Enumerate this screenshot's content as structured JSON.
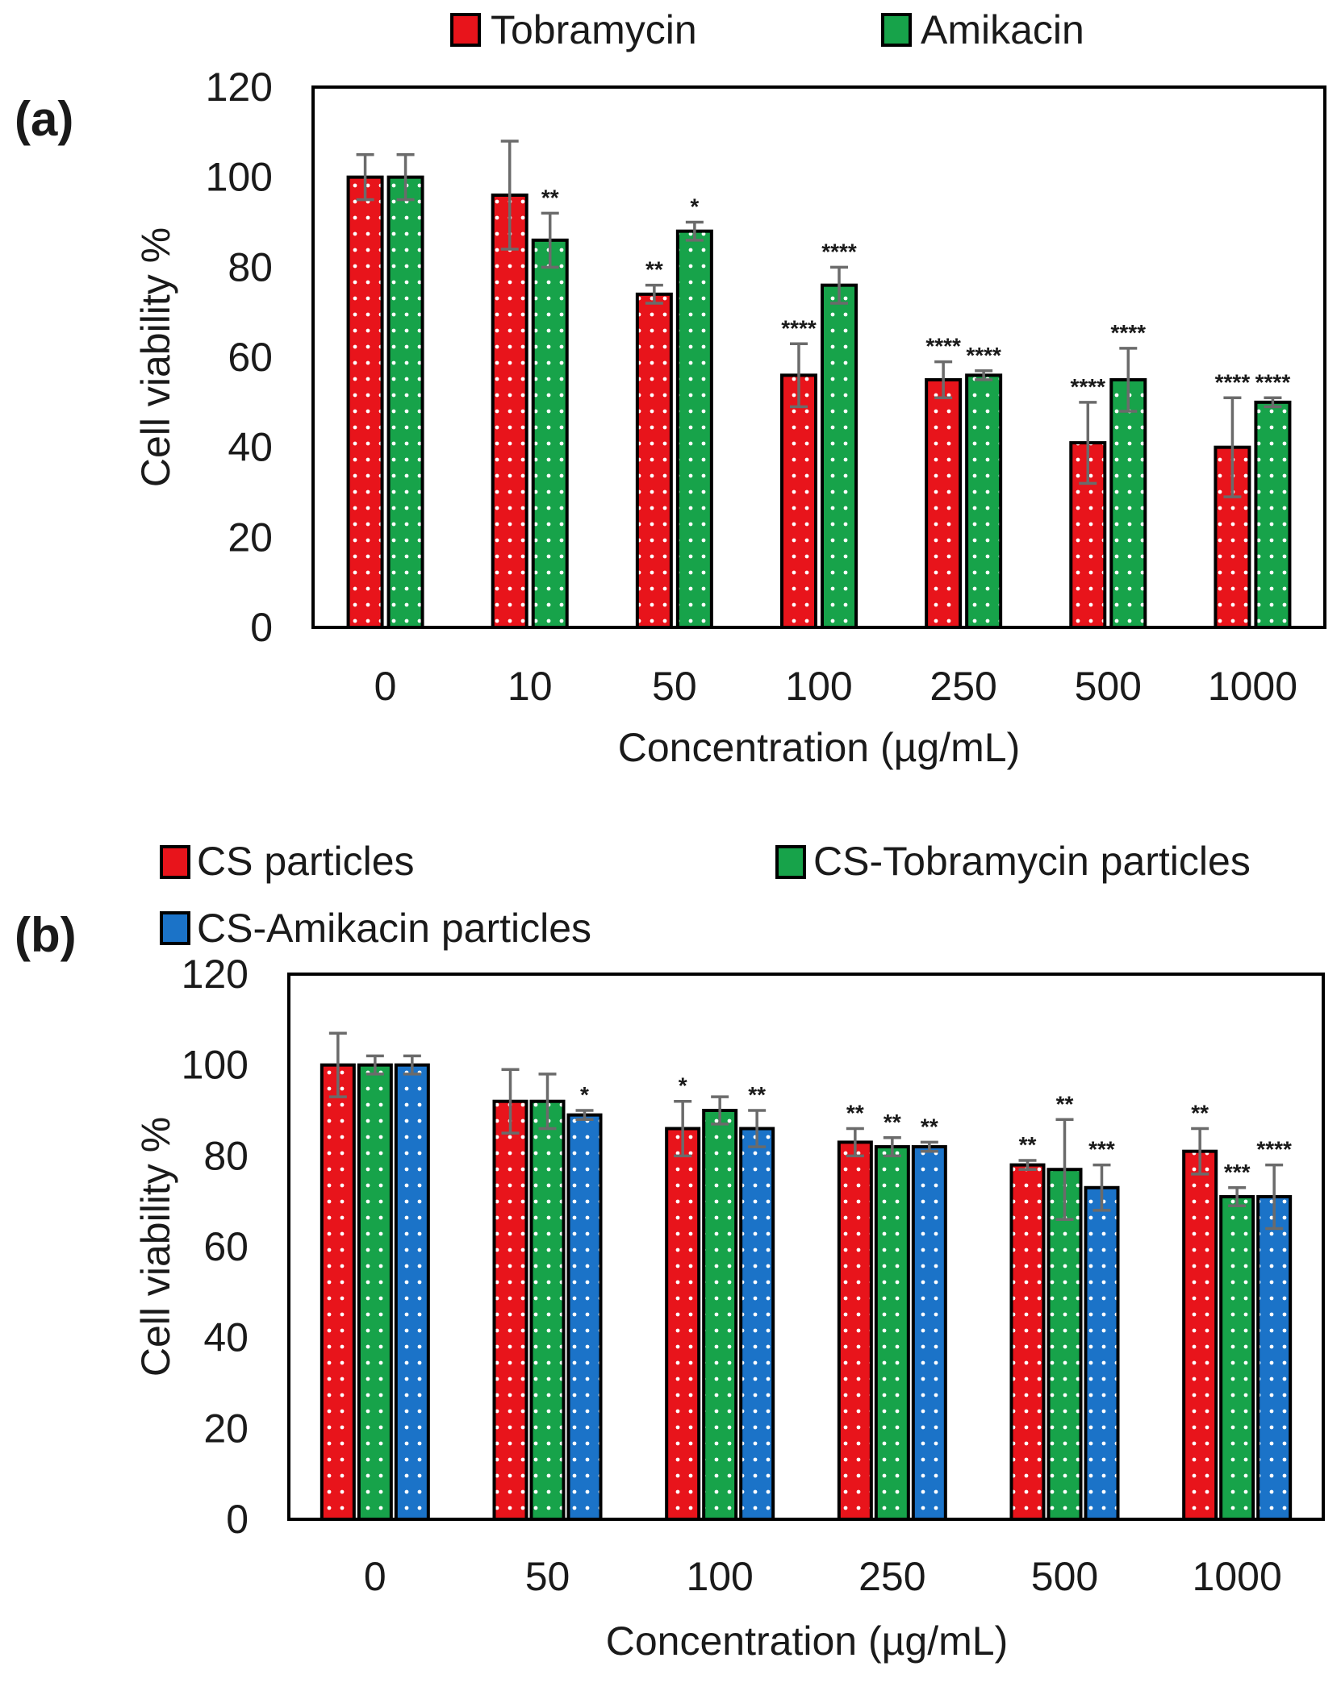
{
  "colors": {
    "red": "#e8141b",
    "green": "#17a34a",
    "blue": "#1b73c8",
    "error_bar": "#6b6b6b",
    "dots": "#ffffff"
  },
  "chart_data": [
    {
      "panel": "(a)",
      "type": "bar",
      "xlabel": "Concentration (µg/mL)",
      "ylabel": "Cell viability %",
      "ylim": [
        0,
        120
      ],
      "yticks": [
        0,
        20,
        40,
        60,
        80,
        100,
        120
      ],
      "grid": false,
      "legend_position": "top",
      "categories": [
        "0",
        "10",
        "50",
        "100",
        "250",
        "500",
        "1000"
      ],
      "series": [
        {
          "name": "Tobramycin",
          "color_key": "red",
          "values": [
            100,
            96,
            74,
            56,
            55,
            41,
            40
          ],
          "errors": [
            5,
            12,
            2,
            7,
            4,
            9,
            11
          ],
          "significance": [
            "",
            "",
            "**",
            "****",
            "****",
            "****",
            "****"
          ]
        },
        {
          "name": "Amikacin",
          "color_key": "green",
          "values": [
            100,
            86,
            88,
            76,
            56,
            55,
            50
          ],
          "errors": [
            5,
            6,
            2,
            4,
            1,
            7,
            1
          ],
          "significance": [
            "",
            "**",
            "*",
            "****",
            "****",
            "****",
            "****"
          ]
        }
      ]
    },
    {
      "panel": "(b)",
      "type": "bar",
      "xlabel": "Concentration (µg/mL)",
      "ylabel": "Cell viability %",
      "ylim": [
        0,
        120
      ],
      "yticks": [
        0,
        20,
        40,
        60,
        80,
        100,
        120
      ],
      "grid": false,
      "legend_position": "top",
      "categories": [
        "0",
        "50",
        "100",
        "250",
        "500",
        "1000"
      ],
      "series": [
        {
          "name": "CS particles",
          "color_key": "red",
          "values": [
            100,
            92,
            86,
            83,
            78,
            81
          ],
          "errors": [
            7,
            7,
            6,
            3,
            1,
            5
          ],
          "significance": [
            "",
            "",
            "*",
            "**",
            "**",
            "**"
          ]
        },
        {
          "name": "CS-Tobramycin particles",
          "color_key": "green",
          "values": [
            100,
            92,
            90,
            82,
            77,
            71
          ],
          "errors": [
            2,
            6,
            3,
            2,
            11,
            2
          ],
          "significance": [
            "",
            "",
            "",
            "**",
            "**",
            "***"
          ]
        },
        {
          "name": "CS-Amikacin particles",
          "color_key": "blue",
          "values": [
            100,
            89,
            86,
            82,
            73,
            71
          ],
          "errors": [
            2,
            1,
            4,
            1,
            5,
            7
          ],
          "significance": [
            "",
            "*",
            "**",
            "**",
            "***",
            "****"
          ]
        }
      ]
    }
  ]
}
